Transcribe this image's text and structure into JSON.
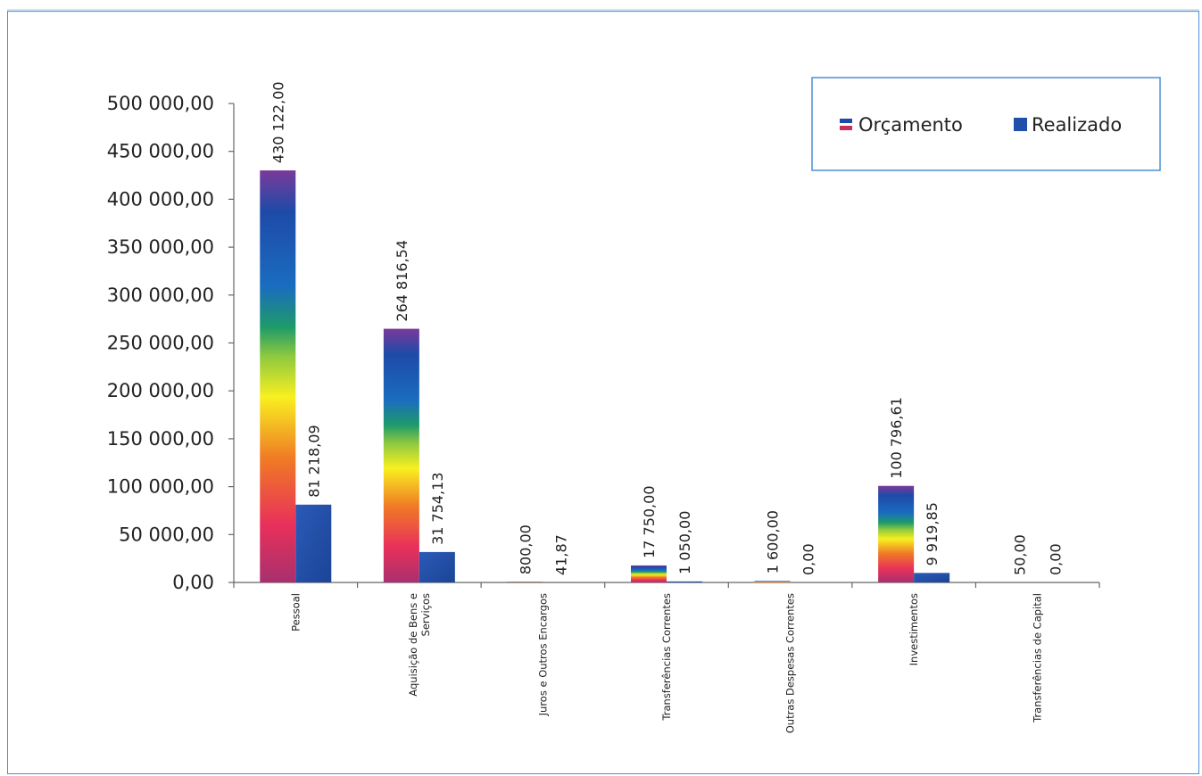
{
  "chart_data": {
    "type": "bar",
    "categories": [
      "Pessoal",
      "Aquisição de Bens e Serviços",
      "Juros e Outros Encargos",
      "Transferências Correntes",
      "Outras Despesas Correntes",
      "Investimentos",
      "Transferências de Capital"
    ],
    "series": [
      {
        "name": "Orçamento",
        "values": [
          430122.0,
          264816.54,
          800.0,
          17750.0,
          1600.0,
          100796.61,
          50.0
        ],
        "labels": [
          "430 122,00",
          "264 816,54",
          "800,00",
          "17 750,00",
          "1 600,00",
          "100 796,61",
          "50,00"
        ]
      },
      {
        "name": "Realizado",
        "values": [
          81218.09,
          31754.13,
          41.87,
          1050.0,
          0.0,
          9919.85,
          0.0
        ],
        "labels": [
          "81 218,09",
          "31 754,13",
          "41,87",
          "1 050,00",
          "0,00",
          "9 919,85",
          "0,00"
        ]
      }
    ],
    "ylim": [
      0,
      500000
    ],
    "yticks": [
      0,
      50000,
      100000,
      150000,
      200000,
      250000,
      300000,
      350000,
      400000,
      450000,
      500000
    ],
    "ytick_labels": [
      "0,00",
      "50 000,00",
      "100 000,00",
      "150 000,00",
      "200 000,00",
      "250 000,00",
      "300 000,00",
      "350 000,00",
      "400 000,00",
      "450 000,00",
      "500 000,00"
    ],
    "title": "",
    "xlabel": "",
    "ylabel": "",
    "grid": false,
    "legend_position": "top-right",
    "colors": {
      "orcamento_gradient": [
        "#b0306a",
        "#e8304a",
        "#f08a20",
        "#f4f020",
        "#30a050",
        "#1a70c0",
        "#1a4aa0",
        "#7a3a9a"
      ],
      "realizado": "#1f4fa8",
      "axis": "#555555"
    }
  }
}
